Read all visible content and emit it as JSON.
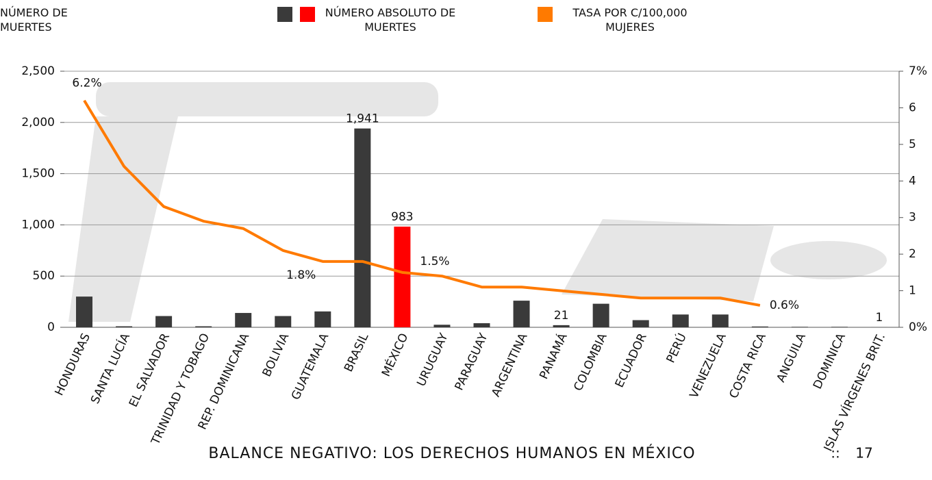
{
  "chart_data": {
    "type": "bar_line",
    "y_label": "NÚMERO DE MUERTES",
    "categories": [
      "HONDURAS",
      "SANTA LUCÍA",
      "EL SALVADOR",
      "TRINIDAD Y TOBAGO",
      "REP. DOMINICANA",
      "BOLIVIA",
      "GUATEMALA",
      "BRASIL",
      "MÉXICO",
      "URUGUAY",
      "PARAGUAY",
      "ARGENTINA",
      "PANAMÁ",
      "COLOMBIA",
      "ECUADOR",
      "PERÚ",
      "VENEZUELA",
      "COSTA RICA",
      "ANGUILA",
      "DOMINICA",
      "ISLAS VÍRGENES BRIT."
    ],
    "series": [
      {
        "name": "NÚMERO ABSOLUTO DE MUERTES",
        "type": "bar",
        "color": "#3a3a3a",
        "colors": [
          "#3a3a3a",
          "#3a3a3a",
          "#3a3a3a",
          "#3a3a3a",
          "#3a3a3a",
          "#3a3a3a",
          "#3a3a3a",
          "#3a3a3a",
          "#ff0000",
          "#3a3a3a",
          "#3a3a3a",
          "#3a3a3a",
          "#3a3a3a",
          "#3a3a3a",
          "#3a3a3a",
          "#3a3a3a",
          "#3a3a3a",
          "#3a3a3a",
          "#3a3a3a",
          "#3a3a3a",
          "#3a3a3a"
        ],
        "values": [
          300,
          10,
          110,
          10,
          140,
          110,
          155,
          1941,
          983,
          25,
          40,
          260,
          21,
          230,
          70,
          125,
          125,
          8,
          5,
          5,
          1
        ],
        "value_labels": [
          null,
          null,
          null,
          null,
          null,
          null,
          null,
          "1,941",
          "983",
          null,
          null,
          null,
          "21",
          null,
          null,
          null,
          null,
          null,
          null,
          null,
          "1"
        ]
      },
      {
        "name": "TASA POR C/100,000 MUJERES",
        "type": "line",
        "axis": "y2",
        "color": "#ff7a00",
        "values": [
          6.2,
          4.4,
          3.3,
          2.9,
          2.7,
          2.1,
          1.8,
          1.8,
          1.5,
          1.4,
          1.1,
          1.1,
          1.0,
          0.9,
          0.8,
          0.8,
          0.8,
          0.6,
          null,
          null,
          null
        ],
        "value_labels": [
          "6.2%",
          null,
          null,
          null,
          null,
          null,
          "1.8%",
          null,
          "1.5%",
          null,
          null,
          null,
          null,
          null,
          null,
          null,
          null,
          "0.6%",
          null,
          null,
          null
        ]
      }
    ],
    "ylim": [
      0,
      2500
    ],
    "yticks": [
      0,
      500,
      {
        "value": 1000,
        "label": "1,000"
      },
      {
        "value": 1500,
        "label": "1,500"
      },
      {
        "value": 2000,
        "label": "2,000"
      },
      {
        "value": 2500,
        "label": "2,500"
      }
    ],
    "y2lim": [
      0,
      7
    ],
    "y2ticks": [
      {
        "value": 0,
        "label": "0%"
      },
      1,
      2,
      3,
      4,
      5,
      6,
      {
        "value": 7,
        "label": "7%"
      }
    ],
    "grid": true
  },
  "footer": {
    "title": "BALANCE NEGATIVO: LOS DERECHOS HUMANOS EN MÉXICO",
    "separator": "::",
    "page": "17"
  }
}
